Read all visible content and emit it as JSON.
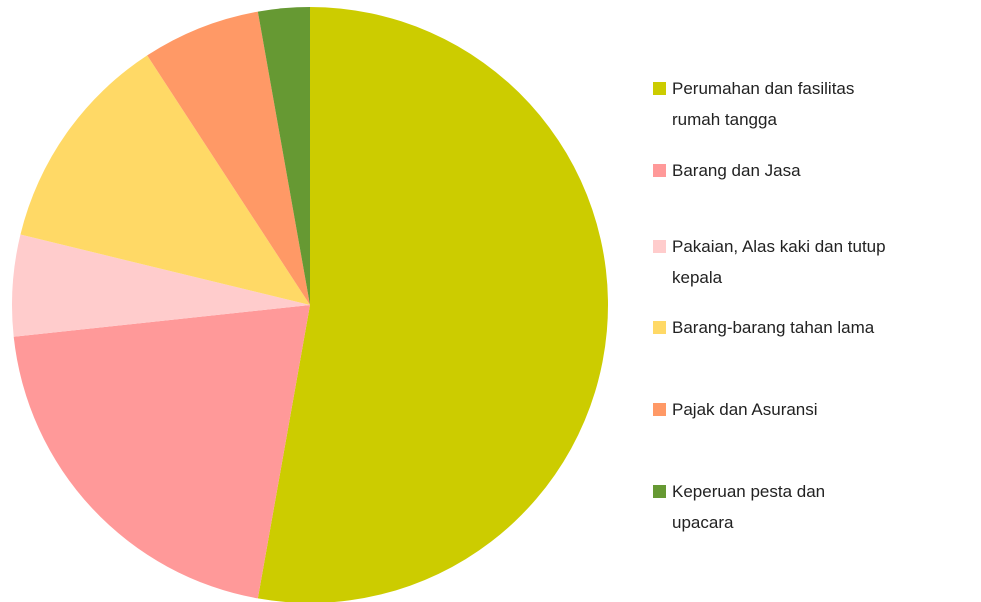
{
  "chart_data": {
    "type": "pie",
    "categories": [
      "Perumahan dan fasilitas rumah tangga",
      "Barang dan Jasa",
      "Pakaian, Alas kaki dan tutup kepala",
      "Barang-barang tahan lama",
      "Pajak dan Asuransi",
      "Keperuan pesta dan upacara"
    ],
    "values": [
      52.8,
      20.5,
      5.5,
      12.0,
      6.4,
      2.8
    ],
    "colors": [
      "#cccc00",
      "#ff9999",
      "#ffcccc",
      "#ffd966",
      "#ff9966",
      "#669933"
    ],
    "legend": "right"
  }
}
